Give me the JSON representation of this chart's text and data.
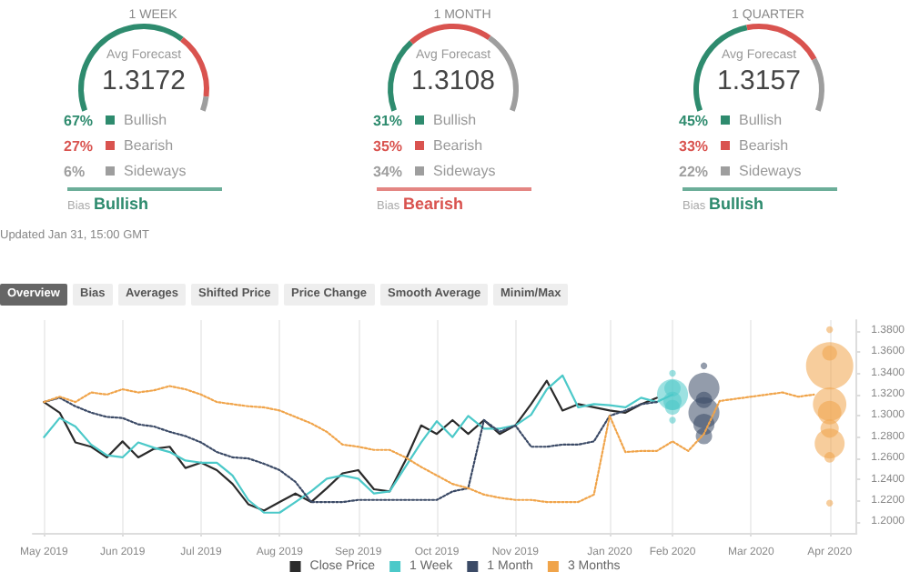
{
  "chart_data": [
    {
      "type": "donut",
      "title": "1 WEEK",
      "categories": [
        "Bullish",
        "Bearish",
        "Sideways"
      ],
      "values": [
        67,
        27,
        6
      ],
      "value_labels": [
        "67%",
        "27%",
        "6%"
      ],
      "colors": [
        "#2e8b6e",
        "#d9534f",
        "#9e9e9e"
      ],
      "annotations": [
        "Avg Forecast",
        "1.3172",
        "Bias Bullish"
      ],
      "legend": "bottom"
    },
    {
      "type": "donut",
      "title": "1 MONTH",
      "categories": [
        "Bullish",
        "Bearish",
        "Sideways"
      ],
      "values": [
        31,
        35,
        34
      ],
      "value_labels": [
        "31%",
        "35%",
        "34%"
      ],
      "colors": [
        "#2e8b6e",
        "#d9534f",
        "#9e9e9e"
      ],
      "annotations": [
        "Avg Forecast",
        "1.3108",
        "Bias Bearish"
      ],
      "legend": "bottom"
    },
    {
      "type": "donut",
      "title": "1 QUARTER",
      "categories": [
        "Bullish",
        "Bearish",
        "Sideways"
      ],
      "values": [
        45,
        33,
        22
      ],
      "value_labels": [
        "45%",
        "33%",
        "22%"
      ],
      "colors": [
        "#2e8b6e",
        "#d9534f",
        "#9e9e9e"
      ],
      "annotations": [
        "Avg Forecast",
        "1.3157",
        "Bias Bullish"
      ],
      "legend": "bottom"
    },
    {
      "type": "line",
      "annotations": [
        "Updated Jan 31, 15:00 GMT",
        "Overview",
        "Bias",
        "Averages",
        "Shifted Price",
        "Price Change",
        "Smooth Average",
        "Minim/Max"
      ],
      "x": [
        "2019-05-01",
        "2019-05-08",
        "2019-05-15",
        "2019-05-22",
        "2019-05-29",
        "2019-06-05",
        "2019-06-12",
        "2019-06-19",
        "2019-06-26",
        "2019-07-03",
        "2019-07-10",
        "2019-07-17",
        "2019-07-24",
        "2019-07-31",
        "2019-08-07",
        "2019-08-14",
        "2019-08-21",
        "2019-08-28",
        "2019-09-04",
        "2019-09-11",
        "2019-09-18",
        "2019-09-25",
        "2019-10-02",
        "2019-10-09",
        "2019-10-16",
        "2019-10-23",
        "2019-10-30",
        "2019-11-06",
        "2019-11-13",
        "2019-11-20",
        "2019-11-27",
        "2019-12-04",
        "2019-12-11",
        "2019-12-18",
        "2019-12-25",
        "2020-01-01",
        "2020-01-08",
        "2020-01-15",
        "2020-01-22",
        "2020-01-29",
        "2020-02-05",
        "2020-02-12",
        "2020-02-19",
        "2020-02-26",
        "2020-03-04",
        "2020-03-11",
        "2020-03-18",
        "2020-03-25",
        "2020-04-01",
        "2020-04-08"
      ],
      "xlim": [
        "2019-04-26",
        "2020-04-27"
      ],
      "xticks": [
        {
          "value": "2019-05-01",
          "label": "May 2019"
        },
        {
          "value": "2019-06-05",
          "label": "Jun 2019"
        },
        {
          "value": "2019-07-10",
          "label": "Jul 2019"
        },
        {
          "value": "2019-08-14",
          "label": "Aug 2019"
        },
        {
          "value": "2019-09-18",
          "label": "Sep 2019"
        },
        {
          "value": "2019-10-23",
          "label": "Oct 2019"
        },
        {
          "value": "2019-11-27",
          "label": "Nov 2019"
        },
        {
          "value": "2020-01-08",
          "label": "Jan 2020"
        },
        {
          "value": "2020-02-05",
          "label": "Feb 2020"
        },
        {
          "value": "2020-03-11",
          "label": "Mar 2020"
        },
        {
          "value": "2020-04-15",
          "label": "Apr 2020"
        }
      ],
      "ylim": [
        1.19,
        1.39
      ],
      "yticks": [
        {
          "value": 1.2,
          "label": "1.2000"
        },
        {
          "value": 1.22,
          "label": "1.2200"
        },
        {
          "value": 1.24,
          "label": "1.2400"
        },
        {
          "value": 1.26,
          "label": "1.2600"
        },
        {
          "value": 1.28,
          "label": "1.2800"
        },
        {
          "value": 1.3,
          "label": "1.3000"
        },
        {
          "value": 1.32,
          "label": "1.3200"
        },
        {
          "value": 1.34,
          "label": "1.3400"
        },
        {
          "value": 1.36,
          "label": "1.3600"
        },
        {
          "value": 1.38,
          "label": "1.3800"
        }
      ],
      "grid": "x",
      "legend": "bottom",
      "marker": "none",
      "series": [
        {
          "name": "Close Price",
          "color": "#2b2b2b",
          "line_style": "solid",
          "values": [
            1.313,
            1.303,
            1.275,
            1.271,
            1.261,
            1.276,
            1.261,
            1.269,
            1.271,
            1.251,
            1.256,
            1.249,
            1.236,
            1.217,
            1.211,
            1.219,
            1.227,
            1.219,
            1.232,
            1.246,
            1.249,
            1.231,
            1.229,
            1.258,
            1.291,
            1.283,
            1.296,
            1.283,
            1.296,
            1.283,
            1.291,
            1.311,
            1.333,
            1.305,
            1.311,
            1.308,
            1.305,
            1.303,
            1.311,
            1.317,
            null,
            null,
            null,
            null,
            null,
            null,
            null,
            null,
            null,
            null
          ]
        },
        {
          "name": "1 Week",
          "color": "#4cc9c9",
          "line_style": "solid",
          "values": [
            1.28,
            1.298,
            1.29,
            1.273,
            1.263,
            1.261,
            1.275,
            1.27,
            1.266,
            1.258,
            1.256,
            1.256,
            1.244,
            1.221,
            1.209,
            1.209,
            1.219,
            1.229,
            1.241,
            1.244,
            1.241,
            1.227,
            1.229,
            1.252,
            1.275,
            1.295,
            1.28,
            1.3,
            1.288,
            1.288,
            1.291,
            1.301,
            1.325,
            1.338,
            1.308,
            1.311,
            1.31,
            1.308,
            1.317,
            1.313,
            1.32,
            null,
            null,
            null,
            null,
            null,
            null,
            null,
            null,
            null
          ]
        },
        {
          "name": "1 Month",
          "color": "#3b4a66",
          "line_style": "dotted",
          "values": [
            1.313,
            1.317,
            1.309,
            1.303,
            1.299,
            1.298,
            1.292,
            1.29,
            1.285,
            1.281,
            1.275,
            1.266,
            1.261,
            1.26,
            1.255,
            1.249,
            1.238,
            1.219,
            1.219,
            1.219,
            1.221,
            1.221,
            1.221,
            1.221,
            1.221,
            1.221,
            1.229,
            1.232,
            1.296,
            1.285,
            1.291,
            1.271,
            1.271,
            1.273,
            1.273,
            1.276,
            1.3,
            1.305,
            1.311,
            1.313,
            null,
            null,
            null,
            null,
            null,
            null,
            null,
            null,
            null,
            null
          ]
        },
        {
          "name": "3 Months",
          "color": "#f0a44a",
          "line_style": "dotted",
          "values": [
            1.313,
            1.318,
            1.313,
            1.322,
            1.32,
            1.325,
            1.322,
            1.324,
            1.328,
            1.325,
            1.32,
            1.313,
            1.311,
            1.309,
            1.308,
            1.305,
            1.299,
            1.293,
            1.285,
            1.273,
            1.271,
            1.268,
            1.268,
            1.261,
            1.252,
            1.244,
            1.236,
            1.232,
            1.226,
            1.223,
            1.221,
            1.221,
            1.219,
            1.219,
            1.219,
            1.226,
            1.3,
            1.266,
            1.267,
            1.267,
            1.276,
            1.267,
            1.283,
            1.314,
            1.316,
            1.318,
            1.32,
            1.322,
            1.318,
            1.32
          ]
        },
        {
          "type": "bubble",
          "color": "#4cc9c9",
          "x": [
            "2020-02-05",
            "2020-02-05",
            "2020-02-05",
            "2020-02-05",
            "2020-02-05",
            "2020-02-05"
          ],
          "values": [
            1.34,
            1.326,
            1.32,
            1.314,
            1.308,
            1.296
          ],
          "sizes": [
            0.02,
            0.12,
            0.43,
            0.15,
            0.1,
            0.02
          ]
        },
        {
          "type": "bubble",
          "color": "#3b4a66",
          "x": [
            "2020-02-19",
            "2020-02-19",
            "2020-02-19",
            "2020-02-19",
            "2020-02-19",
            "2020-02-19"
          ],
          "values": [
            1.347,
            1.326,
            1.315,
            1.303,
            1.292,
            1.281
          ],
          "sizes": [
            0.02,
            0.43,
            0.12,
            0.43,
            0.2,
            0.12
          ]
        },
        {
          "type": "bubble",
          "color": "#f0a44a",
          "x": [
            "2020-04-15",
            "2020-04-15",
            "2020-04-15",
            "2020-04-15",
            "2020-04-15",
            "2020-04-15",
            "2020-04-15",
            "2020-04-15",
            "2020-04-15"
          ],
          "values": [
            1.381,
            1.359,
            1.347,
            1.311,
            1.303,
            1.288,
            1.274,
            1.261,
            1.218
          ],
          "sizes": [
            0.02,
            0.1,
            1,
            0.5,
            0.25,
            0.15,
            0.4,
            0.05,
            0.02
          ]
        }
      ]
    }
  ]
}
